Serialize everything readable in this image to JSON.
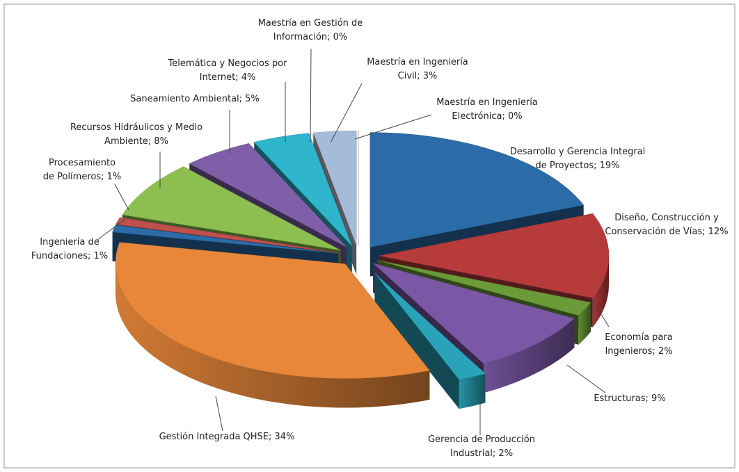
{
  "chart_data": {
    "type": "pie3d",
    "values": [
      19,
      12,
      2,
      9,
      2,
      34,
      1,
      1,
      8,
      5,
      4,
      0,
      3,
      0
    ],
    "value_labels": [
      [
        "Desarrollo y Gerencia Integral",
        "de Proyectos; 19%"
      ],
      [
        "Diseño, Construcción y",
        "Conservación de Vías; 12%"
      ],
      [
        "Economía para",
        "Ingenieros; 2%"
      ],
      [
        "Estructuras; 9%"
      ],
      [
        "Gerencia de Producción",
        "Industrial; 2%"
      ],
      [
        "Gestión Integrada QHSE; 34%"
      ],
      [
        "Ingeniería de",
        "Fundaciones; 1%"
      ],
      [
        "Procesamiento",
        "de Polímeros; 1%"
      ],
      [
        "Recursos Hidráulicos y Medio",
        "Ambiente; 8%"
      ],
      [
        "Saneamiento Ambiental; 5%"
      ],
      [
        "Telemática y Negocios por",
        "Internet; 4%"
      ],
      [
        "Maestría en Gestión de",
        "Información; 0%"
      ],
      [
        "Maestría en Ingeniería",
        "Civil; 3%"
      ],
      [
        "Maestría en Ingeniería",
        "Electrónica; 0%"
      ]
    ],
    "colors": [
      "#2b6ca8",
      "#b73b3b",
      "#6b9a38",
      "#7a58a5",
      "#2aa3b8",
      "#e8873a",
      "#2b6ca8",
      "#c0504d",
      "#8cbf50",
      "#7f60a8",
      "#2fb5cc",
      "#e07c2c",
      "#a5bcd8",
      "#c85050"
    ]
  }
}
